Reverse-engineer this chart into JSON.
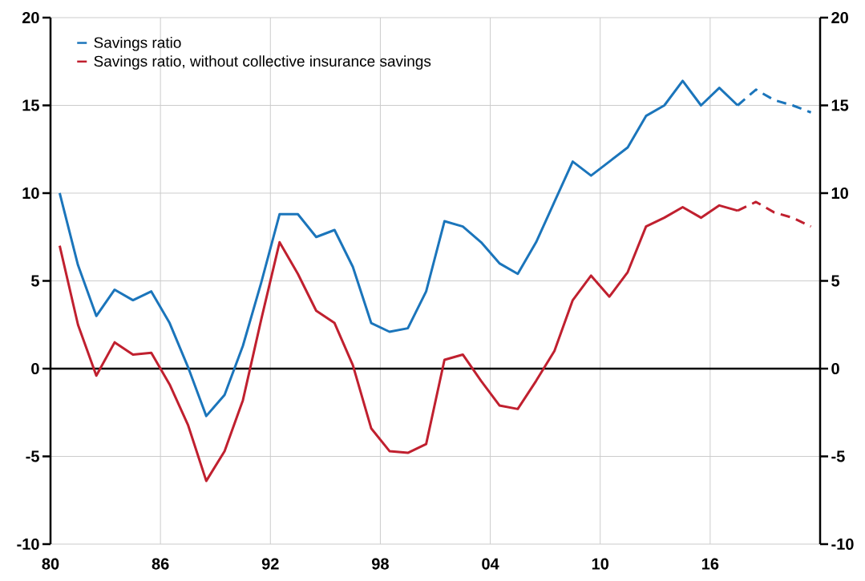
{
  "chart_data": {
    "type": "line",
    "xlim": [
      1980,
      2022
    ],
    "xticks": [
      {
        "value": 1980,
        "label": "80"
      },
      {
        "value": 1986,
        "label": "86"
      },
      {
        "value": 1992,
        "label": "92"
      },
      {
        "value": 1998,
        "label": "98"
      },
      {
        "value": 2004,
        "label": "04"
      },
      {
        "value": 2010,
        "label": "10"
      },
      {
        "value": 2016,
        "label": "16"
      }
    ],
    "ylim": [
      -10,
      20
    ],
    "yticks": [
      -10,
      -5,
      0,
      5,
      10,
      15,
      20
    ],
    "y2lim": [
      -10,
      20
    ],
    "y2ticks": [
      -10,
      -5,
      0,
      5,
      10,
      15,
      20
    ],
    "grid": true,
    "legend": "top left",
    "marker": "none",
    "ref_lines": [
      {
        "axis": "y",
        "value": 0,
        "color": "#000000"
      }
    ],
    "series": [
      {
        "color": "#1b75bb",
        "line_style": "solid",
        "x": [
          1980.5,
          1981.5,
          1982.5,
          1983.5,
          1984.5,
          1985.5,
          1986.5,
          1987.5,
          1988.5,
          1989.5,
          1990.5,
          1991.5,
          1992.5,
          1993.5,
          1994.5,
          1995.5,
          1996.5,
          1997.5,
          1998.5,
          1999.5,
          2000.5,
          2001.5,
          2002.5,
          2003.5,
          2004.5,
          2005.5,
          2006.5,
          2007.5,
          2008.5,
          2009.5,
          2010.5,
          2011.5,
          2012.5,
          2013.5,
          2014.5,
          2015.5,
          2016.5,
          2017.5
        ],
        "values": [
          10.0,
          5.9,
          3.0,
          4.5,
          3.9,
          4.4,
          2.6,
          0.1,
          -2.7,
          -1.5,
          1.3,
          4.9,
          8.8,
          8.8,
          7.5,
          7.9,
          5.8,
          2.6,
          2.1,
          2.3,
          4.4,
          8.4,
          8.1,
          7.2,
          6.0,
          5.4,
          7.2,
          9.5,
          11.8,
          11.0,
          11.8,
          12.6,
          14.4,
          15.0,
          16.4,
          15.0,
          16.0,
          15.0
        ]
      },
      {
        "name": "Savings ratio",
        "color": "#1b75bb",
        "line_style": "dashed",
        "x": [
          2017.5,
          2018.5,
          2019.5,
          2020.5,
          2021.5
        ],
        "values": [
          15.0,
          15.9,
          15.3,
          15.0,
          14.6
        ]
      },
      {
        "color": "#c0202f",
        "line_style": "solid",
        "x": [
          1980.5,
          1981.5,
          1982.5,
          1983.5,
          1984.5,
          1985.5,
          1986.5,
          1987.5,
          1988.5,
          1989.5,
          1990.5,
          1991.5,
          1992.5,
          1993.5,
          1994.5,
          1995.5,
          1996.5,
          1997.5,
          1998.5,
          1999.5,
          2000.5,
          2001.5,
          2002.5,
          2003.5,
          2004.5,
          2005.5,
          2006.5,
          2007.5,
          2008.5,
          2009.5,
          2010.5,
          2011.5,
          2012.5,
          2013.5,
          2014.5,
          2015.5,
          2016.5,
          2017.5
        ],
        "values": [
          7.0,
          2.5,
          -0.4,
          1.5,
          0.8,
          0.9,
          -0.9,
          -3.2,
          -6.4,
          -4.7,
          -1.8,
          2.8,
          7.2,
          5.4,
          3.3,
          2.6,
          0.2,
          -3.4,
          -4.7,
          -4.8,
          -4.3,
          0.5,
          0.8,
          -0.7,
          -2.1,
          -2.3,
          -0.7,
          1.0,
          3.9,
          5.3,
          4.1,
          5.5,
          8.1,
          8.6,
          9.2,
          8.6,
          9.3,
          9.0
        ]
      },
      {
        "name": "Savings ratio, without collective insurance savings",
        "color": "#c0202f",
        "line_style": "dashed",
        "x": [
          2017.5,
          2018.5,
          2019.5,
          2020.5,
          2021.5
        ],
        "values": [
          9.0,
          9.5,
          8.9,
          8.6,
          8.1
        ]
      }
    ]
  }
}
